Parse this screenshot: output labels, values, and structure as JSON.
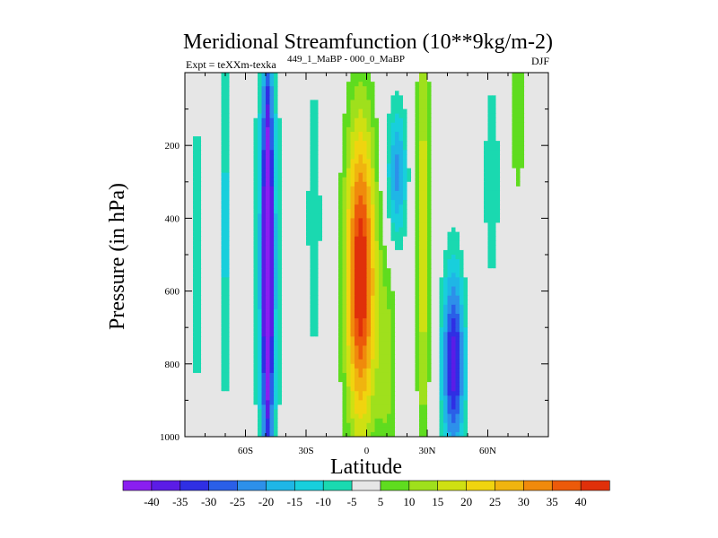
{
  "chart_data": {
    "type": "heatmap",
    "title": "Meridional Streamfunction (10**9kg/m-2)",
    "subtitle_left": "Expt = teXXm-texka",
    "subtitle_sup": "449_1_MaBP - 000_0_MaBP",
    "subtitle_right": "DJF",
    "xlabel": "Latitude",
    "ylabel": "Pressure (in hPa)",
    "xlim": [
      -90,
      90
    ],
    "ylim": [
      0,
      1000
    ],
    "y_inverted": true,
    "x_ticks": [
      {
        "value": -60,
        "label": "60S"
      },
      {
        "value": -30,
        "label": "30S"
      },
      {
        "value": 0,
        "label": "0"
      },
      {
        "value": 30,
        "label": "30N"
      },
      {
        "value": 60,
        "label": "60N"
      }
    ],
    "y_ticks": [
      {
        "value": 200,
        "label": "200"
      },
      {
        "value": 400,
        "label": "400"
      },
      {
        "value": 600,
        "label": "600"
      },
      {
        "value": 800,
        "label": "800"
      },
      {
        "value": 1000,
        "label": "1000"
      }
    ],
    "colorbar": {
      "levels": [
        -40,
        -35,
        -30,
        -25,
        -20,
        -15,
        -10,
        -5,
        5,
        10,
        15,
        20,
        25,
        30,
        35,
        40
      ],
      "level_labels": [
        "-40",
        "-35",
        "-30",
        "-25",
        "-20",
        "-15",
        "-10",
        "-5",
        "5",
        "10",
        "15",
        "20",
        "25",
        "30",
        "35",
        "40"
      ],
      "colors": [
        "#8a1ff0",
        "#5b1ce6",
        "#2f2fe4",
        "#2a5fe8",
        "#2d90ea",
        "#1fb6e6",
        "#18cfdc",
        "#1ad9b0",
        "#e6e6e6",
        "#5fdc1f",
        "#9fe01c",
        "#cfe012",
        "#f0d40f",
        "#f0b40f",
        "#f08a0c",
        "#ec5a0a",
        "#e0300a"
      ]
    },
    "features": [
      {
        "name": "tropical-positive-cell",
        "level": 40,
        "lat_range": [
          -13,
          8
        ],
        "p_range": [
          150,
          970
        ]
      },
      {
        "name": "southern-negative-band",
        "level": -40,
        "lat_range": [
          -52,
          -46
        ],
        "p_range": [
          0,
          990
        ]
      },
      {
        "name": "northern-negative-cell",
        "level": -35,
        "lat_range": [
          37,
          50
        ],
        "p_range": [
          500,
          960
        ]
      },
      {
        "name": "upper-negative-lobe",
        "level": -30,
        "lat_range": [
          10,
          28
        ],
        "p_range": [
          60,
          470
        ]
      },
      {
        "name": "northern-positive-band",
        "level": 20,
        "lat_range": [
          24,
          31
        ],
        "p_range": [
          0,
          990
        ]
      },
      {
        "name": "polar-positive-plume",
        "level": 10,
        "lat_range": [
          70,
          80
        ],
        "p_range": [
          0,
          340
        ]
      }
    ]
  }
}
